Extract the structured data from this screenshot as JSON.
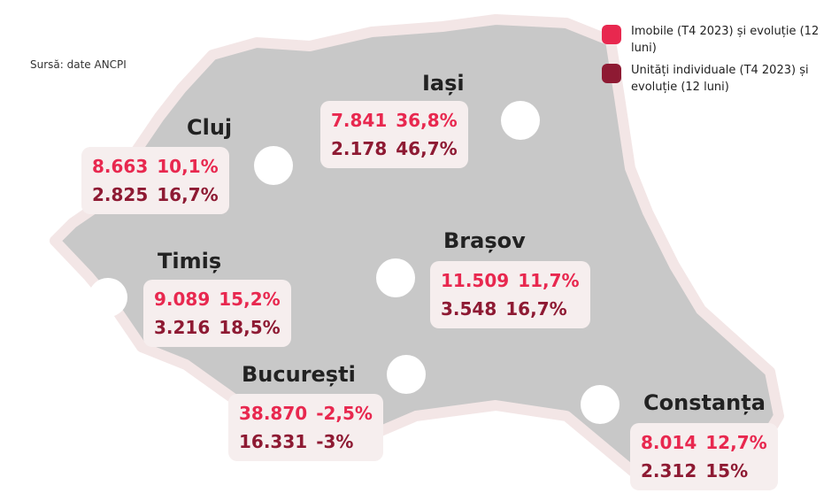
{
  "source": "Sursă: date ANCPI",
  "legend": [
    {
      "label": "Imobile (T4 2023) și evoluție (12 luni)",
      "color": "#e8284f"
    },
    {
      "label": "Unități individuale (T4 2023) și evoluție (12 luni)",
      "color": "#8e1a33"
    }
  ],
  "colors": {
    "map": "#c8c8c8",
    "border": "#f3e6e6",
    "box": "#f6eeee"
  },
  "regions": [
    {
      "name": "Cluj",
      "imobile": "8.663",
      "imobile_evol": "10,1%",
      "unitati": "2.825",
      "unitati_evol": "16,7%"
    },
    {
      "name": "Iași",
      "imobile": "7.841",
      "imobile_evol": "36,8%",
      "unitati": "2.178",
      "unitati_evol": "46,7%"
    },
    {
      "name": "Timiș",
      "imobile": "9.089",
      "imobile_evol": "15,2%",
      "unitati": "3.216",
      "unitati_evol": "18,5%"
    },
    {
      "name": "Brașov",
      "imobile": "11.509",
      "imobile_evol": "11,7%",
      "unitati": "3.548",
      "unitati_evol": "16,7%"
    },
    {
      "name": "București",
      "imobile": "38.870",
      "imobile_evol": "-2,5%",
      "unitati": "16.331",
      "unitati_evol": "-3%"
    },
    {
      "name": "Constanța",
      "imobile": "8.014",
      "imobile_evol": "12,7%",
      "unitati": "2.312",
      "unitati_evol": "15%"
    }
  ]
}
